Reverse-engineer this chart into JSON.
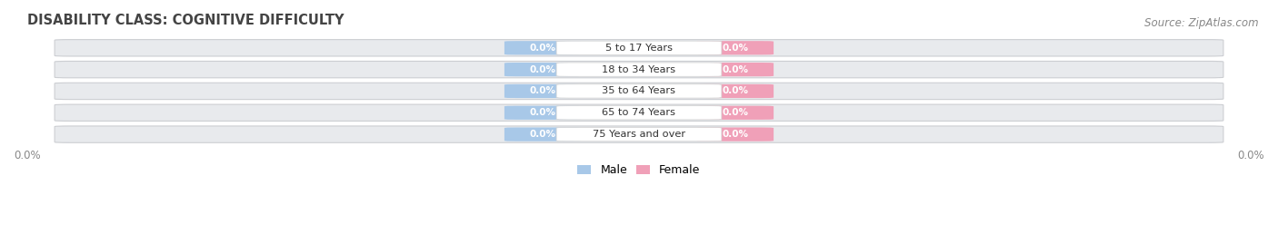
{
  "title": "DISABILITY CLASS: COGNITIVE DIFFICULTY",
  "source": "Source: ZipAtlas.com",
  "categories": [
    "5 to 17 Years",
    "18 to 34 Years",
    "35 to 64 Years",
    "65 to 74 Years",
    "75 Years and over"
  ],
  "male_values": [
    "0.0%",
    "0.0%",
    "0.0%",
    "0.0%",
    "0.0%"
  ],
  "female_values": [
    "0.0%",
    "0.0%",
    "0.0%",
    "0.0%",
    "0.0%"
  ],
  "male_color": "#a8c8e8",
  "female_color": "#f0a0b8",
  "male_label": "Male",
  "female_label": "Female",
  "row_bg_color": "#e8eaed",
  "row_bg_alt_color": "#dfe1e5",
  "title_fontsize": 10.5,
  "source_fontsize": 8.5,
  "background_color": "#ffffff",
  "axis_label_color": "#888888",
  "tick_label_left": "0.0%",
  "tick_label_right": "0.0%"
}
